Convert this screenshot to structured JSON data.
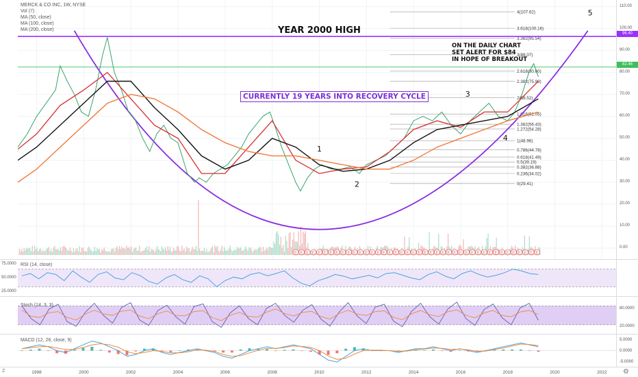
{
  "chart_data": {
    "type": "line",
    "legend": {
      "title": "MERCK & CO INC, 1W, NYSE",
      "items": [
        "Vol (7)",
        "MA (50, close)",
        "MA (100, close)",
        "MA (200, close)"
      ]
    },
    "price_axis": {
      "ticks": [
        "110.00",
        "100.00",
        "90.00",
        "80.00",
        "70.00",
        "60.00",
        "50.00",
        "40.00",
        "30.00",
        "20.00",
        "10.00",
        "0.00"
      ],
      "ylim": [
        -5,
        113
      ]
    },
    "x_axis": {
      "ticks": [
        "1998",
        "2000",
        "2002",
        "2004",
        "2006",
        "2008",
        "2010",
        "2012",
        "2014",
        "2016",
        "2018",
        "2020",
        "2022"
      ],
      "xlim": [
        1997.2,
        2022.6
      ]
    },
    "series": [
      {
        "name": "close",
        "x": [
          1997.2,
          1997.6,
          1998.0,
          1998.4,
          1998.8,
          1999.0,
          1999.3,
          1999.6,
          1999.9,
          2000.2,
          2000.5,
          2000.8,
          2001.0,
          2001.3,
          2001.6,
          2001.9,
          2002.2,
          2002.5,
          2002.8,
          2003.1,
          2003.4,
          2003.7,
          2004.0,
          2004.4,
          2004.7,
          2004.9,
          2005.2,
          2005.5,
          2005.8,
          2006.1,
          2006.4,
          2006.7,
          2007.0,
          2007.3,
          2007.6,
          2007.9,
          2008.1,
          2008.4,
          2008.7,
          2009.0,
          2009.2,
          2009.5,
          2009.8,
          2010.1,
          2010.5,
          2010.9,
          2011.3,
          2011.7,
          2012.0,
          2012.4,
          2012.8,
          2013.2,
          2013.6,
          2014.0,
          2014.4,
          2014.8,
          2015.2,
          2015.6,
          2016.0,
          2016.4,
          2016.8,
          2017.2,
          2017.6,
          2018.0,
          2018.3,
          2018.6,
          2018.9,
          2019.1,
          2019.3
        ],
        "values": [
          46,
          52,
          60,
          66,
          72,
          83,
          76,
          70,
          62,
          60,
          72,
          88,
          96,
          80,
          72,
          62,
          58,
          50,
          44,
          52,
          56,
          50,
          48,
          34,
          30,
          32,
          30,
          34,
          36,
          38,
          42,
          46,
          52,
          56,
          60,
          62,
          56,
          46,
          38,
          30,
          26,
          32,
          36,
          38,
          36,
          36,
          37,
          34,
          38,
          40,
          42,
          46,
          50,
          58,
          60,
          58,
          62,
          56,
          52,
          58,
          62,
          66,
          60,
          58,
          62,
          70,
          80,
          84,
          78
        ]
      },
      {
        "name": "MA (50, close)",
        "x": [
          1997.2,
          1998.0,
          1999.0,
          2000.0,
          2001.0,
          2002.0,
          2003.0,
          2004.0,
          2005.0,
          2006.0,
          2007.0,
          2008.0,
          2009.0,
          2010.0,
          2011.0,
          2012.0,
          2013.0,
          2014.0,
          2015.0,
          2016.0,
          2017.0,
          2018.0,
          2019.3
        ],
        "values": [
          45,
          52,
          65,
          72,
          80,
          68,
          56,
          50,
          34,
          34,
          46,
          58,
          40,
          34,
          36,
          37,
          44,
          54,
          58,
          55,
          62,
          62,
          76
        ]
      },
      {
        "name": "MA (100, close)",
        "x": [
          1997.2,
          1998.0,
          1999.0,
          2000.0,
          2001.0,
          2002.0,
          2003.0,
          2004.0,
          2005.0,
          2006.0,
          2007.0,
          2008.0,
          2009.0,
          2010.0,
          2011.0,
          2012.0,
          2013.0,
          2014.0,
          2015.0,
          2016.0,
          2017.0,
          2018.0,
          2019.3
        ],
        "values": [
          40,
          46,
          56,
          66,
          76,
          76,
          64,
          54,
          42,
          36,
          40,
          50,
          46,
          38,
          35,
          36,
          40,
          48,
          54,
          56,
          58,
          60,
          68
        ]
      },
      {
        "name": "MA (200, close)",
        "x": [
          1997.2,
          1998.0,
          1999.0,
          2000.0,
          2001.0,
          2002.0,
          2003.0,
          2004.0,
          2005.0,
          2006.0,
          2007.0,
          2008.0,
          2009.0,
          2010.0,
          2011.0,
          2012.0,
          2013.0,
          2014.0,
          2015.0,
          2016.0,
          2017.0,
          2018.0,
          2019.3
        ],
        "values": [
          30,
          36,
          46,
          56,
          66,
          70,
          68,
          62,
          54,
          48,
          44,
          42,
          42,
          40,
          38,
          36,
          36,
          40,
          46,
          50,
          54,
          58,
          62
        ]
      }
    ],
    "recovery_arc": {
      "x": [
        1999.6,
        2010.0,
        2021.4
      ],
      "values": [
        99,
        8.5,
        99
      ]
    },
    "horizontal_levels": [
      {
        "label": "96.40",
        "value": 96.4,
        "color": "#9b30ff"
      },
      {
        "label": "82.46",
        "value": 82.46,
        "color": "#3fbf5a"
      }
    ],
    "fib_levels": [
      {
        "label": "4(107.62)",
        "value": 107.62
      },
      {
        "label": "3.618(100.16)",
        "value": 100.16
      },
      {
        "label": "3.382(95.54)",
        "value": 95.54
      },
      {
        "label": "3(88.07)",
        "value": 88.07
      },
      {
        "label": "2.618(80.60)",
        "value": 80.6
      },
      {
        "label": "2.382(75.99)",
        "value": 75.99
      },
      {
        "label": "2(68.52)",
        "value": 68.52
      },
      {
        "label": "1.618(61.05)",
        "value": 61.05
      },
      {
        "label": "1.382(56.43)",
        "value": 56.43
      },
      {
        "label": "1.272(54.28)",
        "value": 54.28
      },
      {
        "label": "1(48.96)",
        "value": 48.96
      },
      {
        "label": "0.786(44.78)",
        "value": 44.78
      },
      {
        "label": "0.618(41.49)",
        "value": 41.49
      },
      {
        "label": "0.5(39.19)",
        "value": 39.19
      },
      {
        "label": "0.382(36.88)",
        "value": 36.88
      },
      {
        "label": "0.236(34.02)",
        "value": 34.02
      },
      {
        "label": "0(29.41)",
        "value": 29.41
      }
    ],
    "waves": [
      {
        "label": "1",
        "x": 2010.0,
        "value": 44
      },
      {
        "label": "2",
        "x": 2011.6,
        "value": 28
      },
      {
        "label": "3",
        "x": 2016.3,
        "value": 69
      },
      {
        "label": "4",
        "x": 2017.9,
        "value": 49
      },
      {
        "label": "5",
        "x": 2021.5,
        "value": 106
      }
    ],
    "annotations": {
      "year_high": "YEAR 2000 HIGH",
      "recovery": "CURRENTLY 19 YEARS INTO RECOVERY CYCLE",
      "alert_lines": [
        "ON THE DAILY CHART",
        "SET ALERT FOR $84",
        "IN HOPE OF BREAKOUT"
      ]
    },
    "earnings_marker": "E",
    "rsi": {
      "legend": "RSI (14, close)",
      "ticks": [
        "75.0000",
        "50.0000",
        "25.0000"
      ],
      "band": [
        30,
        70
      ],
      "values": [
        55,
        60,
        48,
        62,
        58,
        44,
        66,
        52,
        40,
        58,
        64,
        50,
        46,
        62,
        55,
        42,
        36,
        50,
        58,
        46,
        40,
        55,
        48,
        30,
        44,
        52,
        48,
        58,
        62,
        55,
        60,
        66,
        50,
        38,
        32,
        44,
        50,
        58,
        54,
        48,
        52,
        56,
        50,
        60,
        62,
        56,
        50,
        46,
        58,
        64,
        54,
        48,
        60,
        66,
        58,
        52,
        56,
        62,
        70,
        66,
        60,
        58
      ]
    },
    "stoch": {
      "legend": "Stoch (14, 3, 3)",
      "ticks": [
        "80.0000",
        "20.0000"
      ],
      "band": [
        20,
        80
      ],
      "values": [
        80,
        40,
        20,
        70,
        85,
        30,
        15,
        60,
        88,
        50,
        25,
        75,
        90,
        35,
        18,
        65,
        82,
        45,
        22,
        78,
        86,
        30,
        12,
        58,
        80,
        40,
        20,
        72,
        88,
        50,
        28,
        66,
        84,
        38,
        16,
        60,
        90,
        48,
        24,
        76,
        85,
        32,
        14,
        62,
        88,
        46,
        22,
        70,
        92,
        40,
        18,
        68,
        86,
        42,
        20,
        74,
        88,
        34
      ]
    },
    "macd": {
      "legend": "MACD (12, 26, close, 9)",
      "ticks": [
        "5.0000",
        "0.0000",
        "-5.0000"
      ],
      "values": [
        1,
        2,
        3,
        2,
        0,
        -1,
        1,
        3,
        5,
        4,
        2,
        0,
        -3,
        -2,
        0,
        1,
        -1,
        -2,
        -1,
        0,
        1,
        0,
        -1,
        -3,
        -4,
        -2,
        0,
        1,
        2,
        1,
        2,
        3,
        2,
        1,
        -2,
        -5,
        -6,
        -3,
        0,
        1,
        0,
        0,
        0,
        -1,
        0,
        1,
        1,
        2,
        1,
        0,
        1,
        0,
        -1,
        0,
        1,
        2,
        3,
        4,
        3,
        2
      ],
      "signal": [
        1,
        1.5,
        2,
        2.2,
        1.4,
        0.6,
        0.6,
        1.6,
        3,
        3.6,
        3,
        1.8,
        -0.6,
        -1.6,
        -1,
        0,
        -0.4,
        -1.2,
        -1.2,
        -0.6,
        0.4,
        0.2,
        -0.4,
        -2,
        -3,
        -2.6,
        -1.2,
        0.2,
        1.2,
        1.2,
        1.6,
        2.4,
        2.2,
        1.6,
        0,
        -2.8,
        -4.6,
        -4,
        -1.8,
        0,
        0.2,
        0.2,
        0,
        -0.4,
        -0.2,
        0.4,
        0.8,
        1.4,
        1.2,
        0.6,
        0.8,
        0.4,
        -0.4,
        -0.2,
        0.6,
        1.4,
        2.4,
        3.4,
        3.2,
        2.6
      ]
    }
  }
}
